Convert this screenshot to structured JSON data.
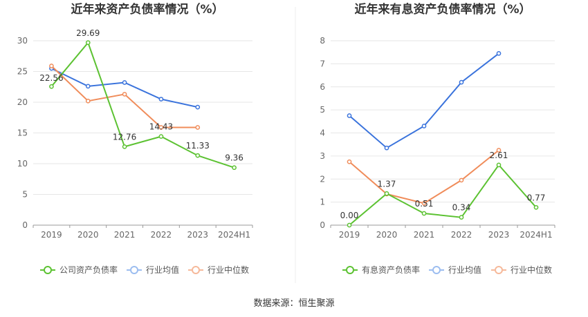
{
  "source": "数据来源：恒生聚源",
  "colors": {
    "company": "#5cc232",
    "avg": "#3a73dc",
    "median": "#f08c5a",
    "avg_legend": "#9cbdf0",
    "median_legend": "#f6b99a"
  },
  "chart_data": [
    {
      "type": "line",
      "title": "近年来资产负债率情况（%）",
      "categories": [
        "2019",
        "2020",
        "2021",
        "2022",
        "2023",
        "2024H1"
      ],
      "ylim": [
        0,
        30
      ],
      "yticks": [
        "0",
        "5",
        "10",
        "15",
        "20",
        "25",
        "30"
      ],
      "grid": true,
      "legend_position": "bottom",
      "series": [
        {
          "name": "公司资产负债率",
          "key": "company",
          "values": [
            22.56,
            29.69,
            12.76,
            14.43,
            11.33,
            9.36
          ],
          "labels": [
            "22.56",
            "29.69",
            "12.76",
            "14.43",
            "11.33",
            "9.36"
          ]
        },
        {
          "name": "行业均值",
          "key": "avg",
          "values": [
            25.5,
            22.6,
            23.2,
            20.5,
            19.2,
            null
          ]
        },
        {
          "name": "行业中位数",
          "key": "median",
          "values": [
            25.9,
            20.2,
            21.3,
            15.9,
            15.9,
            null
          ]
        }
      ]
    },
    {
      "type": "line",
      "title": "近年来有息资产负债率情况（%）",
      "categories": [
        "2019",
        "2020",
        "2021",
        "2022",
        "2023",
        "2024H1"
      ],
      "ylim": [
        0,
        8
      ],
      "yticks": [
        "0",
        "1",
        "2",
        "3",
        "4",
        "5",
        "6",
        "7",
        "8"
      ],
      "grid": true,
      "legend_position": "bottom",
      "series": [
        {
          "name": "有息资产负债率",
          "key": "company",
          "values": [
            0.0,
            1.37,
            0.51,
            0.34,
            2.61,
            0.77
          ],
          "labels": [
            "0.00",
            "1.37",
            "0.51",
            "0.34",
            "2.61",
            "0.77"
          ]
        },
        {
          "name": "行业均值",
          "key": "avg",
          "values": [
            4.75,
            3.35,
            4.3,
            6.2,
            7.45,
            null
          ]
        },
        {
          "name": "行业中位数",
          "key": "median",
          "values": [
            2.75,
            1.35,
            0.95,
            1.95,
            3.25,
            null
          ]
        }
      ]
    }
  ]
}
